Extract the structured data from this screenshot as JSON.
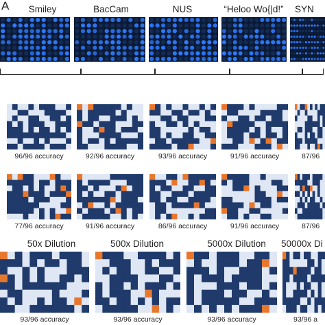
{
  "panel_label_a": "A",
  "panel_label_b": ")",
  "photos": [
    {
      "label": "Smiley"
    },
    {
      "label": "BacCam"
    },
    {
      "label": "NUS"
    },
    {
      "label": "“Heloo Wo{|d!”"
    },
    {
      "label": "SYN"
    }
  ],
  "row1": [
    {
      "accuracy": "96/96 accuracy"
    },
    {
      "accuracy": "92/96 accuracy"
    },
    {
      "accuracy": "93/96 accuracy"
    },
    {
      "accuracy": "91/96 accuracy"
    },
    {
      "accuracy": "87/96"
    }
  ],
  "row2": [
    {
      "accuracy": "77/96 accuracy"
    },
    {
      "accuracy": "91/96 accuracy"
    },
    {
      "accuracy": "86/96 accuracy"
    },
    {
      "accuracy": "91/96 accuracy"
    },
    {
      "accuracy": "87/96"
    }
  ],
  "dilutions": [
    {
      "label": "50x Dilution",
      "accuracy": "93/96 accuracy"
    },
    {
      "label": "500x Dilution",
      "accuracy": "93/96 accuracy"
    },
    {
      "label": "5000x Dilution",
      "accuracy": "93/96 accuracy"
    },
    {
      "label": "50000x Di",
      "accuracy": "93/96 a"
    }
  ],
  "colors": {
    "cell_on": "#1f3a6b",
    "cell_off": "#dfe7f4",
    "cell_error": "#e8772e",
    "photo_bg": "#0b1a35",
    "well": "#2f7bff"
  }
}
